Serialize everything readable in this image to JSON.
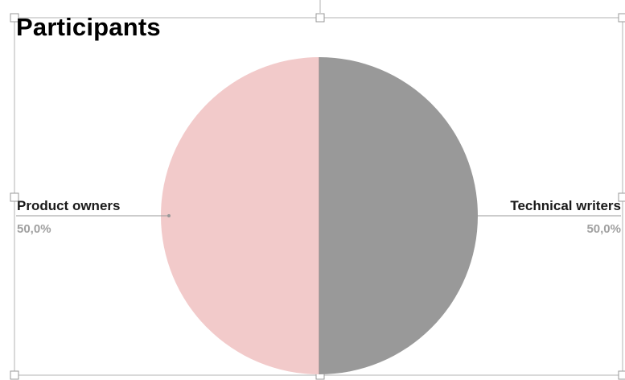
{
  "chart_data": {
    "type": "pie",
    "title": "Participants",
    "slices": [
      {
        "label": "Product owners",
        "value": 50.0,
        "value_label": "50,0%",
        "color": "#f2caca"
      },
      {
        "label": "Technical writers",
        "value": 50.0,
        "value_label": "50,0%",
        "color": "#999999"
      }
    ],
    "legend": "none",
    "data_labels": "outside with leader lines"
  },
  "colors": {
    "selection_frame": "#b3b3b3",
    "leader_line": "#999999",
    "value_text": "#a0a0a0"
  }
}
